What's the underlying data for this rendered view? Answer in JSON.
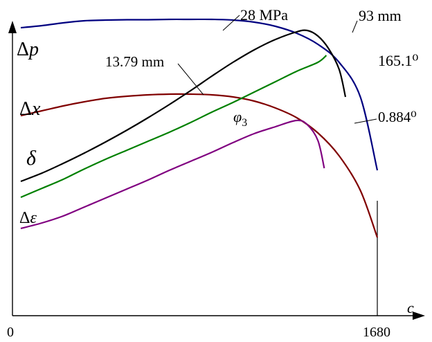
{
  "chart_data": {
    "type": "line",
    "x_axis": {
      "label": "c",
      "ticks": [
        "0",
        "1680"
      ],
      "range": [
        0,
        1680
      ]
    },
    "y_axis": {
      "label": "",
      "numbered": false
    },
    "grid": false,
    "series": [
      {
        "name": "Δp",
        "color": "#000080",
        "label_parts": [
          "Δ",
          "p"
        ],
        "annotation": "28 MPa",
        "points": [
          [
            0,
            40
          ],
          [
            100,
            37
          ],
          [
            200,
            33
          ],
          [
            300,
            30
          ],
          [
            400,
            29
          ],
          [
            500,
            28.5
          ],
          [
            600,
            28.5
          ],
          [
            700,
            28
          ],
          [
            800,
            28
          ],
          [
            900,
            28
          ],
          [
            1000,
            29
          ],
          [
            1100,
            32
          ],
          [
            1200,
            38
          ],
          [
            1300,
            48
          ],
          [
            1400,
            64
          ],
          [
            1500,
            90
          ],
          [
            1600,
            140
          ],
          [
            1680,
            246
          ]
        ]
      },
      {
        "name": "Δx",
        "color": "#800000",
        "label_parts": [
          "Δ",
          "x"
        ],
        "annotation": "13.79 mm",
        "points": [
          [
            0,
            167
          ],
          [
            100,
            160
          ],
          [
            200,
            153
          ],
          [
            300,
            147
          ],
          [
            400,
            142
          ],
          [
            500,
            139
          ],
          [
            600,
            137
          ],
          [
            700,
            136
          ],
          [
            800,
            136
          ],
          [
            900,
            137
          ],
          [
            1000,
            140
          ],
          [
            1100,
            146
          ],
          [
            1200,
            156
          ],
          [
            1300,
            170
          ],
          [
            1400,
            192
          ],
          [
            1500,
            225
          ],
          [
            1600,
            275
          ],
          [
            1680,
            343
          ]
        ]
      },
      {
        "name": "δ",
        "color": "#000000",
        "label_parts": [
          "δ"
        ],
        "annotation": "93 mm",
        "points": [
          [
            0,
            262
          ],
          [
            100,
            250
          ],
          [
            200,
            236
          ],
          [
            300,
            221
          ],
          [
            400,
            205
          ],
          [
            500,
            188
          ],
          [
            600,
            170
          ],
          [
            700,
            151
          ],
          [
            800,
            131
          ],
          [
            900,
            110
          ],
          [
            1000,
            90
          ],
          [
            1100,
            72
          ],
          [
            1200,
            57
          ],
          [
            1300,
            46
          ],
          [
            1350,
            44
          ],
          [
            1400,
            52
          ],
          [
            1450,
            70
          ],
          [
            1500,
            100
          ],
          [
            1530,
            140
          ]
        ]
      },
      {
        "name": "φ3",
        "color": "#008000",
        "label_parts": [
          "φ",
          "3"
        ],
        "annotation": "165.1⁰",
        "points": [
          [
            0,
            285
          ],
          [
            100,
            272
          ],
          [
            200,
            259
          ],
          [
            300,
            244
          ],
          [
            400,
            230
          ],
          [
            500,
            217
          ],
          [
            600,
            204
          ],
          [
            700,
            191
          ],
          [
            800,
            177
          ],
          [
            900,
            162
          ],
          [
            1000,
            148
          ],
          [
            1100,
            133
          ],
          [
            1200,
            118
          ],
          [
            1300,
            103
          ],
          [
            1400,
            90
          ],
          [
            1440,
            80
          ]
        ]
      },
      {
        "name": "Δε",
        "color": "#800080",
        "label_parts": [
          "Δ",
          "ε"
        ],
        "annotation": "0.884⁰",
        "points": [
          [
            0,
            330
          ],
          [
            100,
            322
          ],
          [
            200,
            312
          ],
          [
            300,
            299
          ],
          [
            400,
            286
          ],
          [
            500,
            273
          ],
          [
            600,
            260
          ],
          [
            700,
            246
          ],
          [
            800,
            233
          ],
          [
            900,
            220
          ],
          [
            1000,
            206
          ],
          [
            1100,
            193
          ],
          [
            1200,
            183
          ],
          [
            1300,
            174
          ],
          [
            1350,
            180
          ],
          [
            1400,
            203
          ],
          [
            1430,
            243
          ]
        ]
      }
    ]
  }
}
